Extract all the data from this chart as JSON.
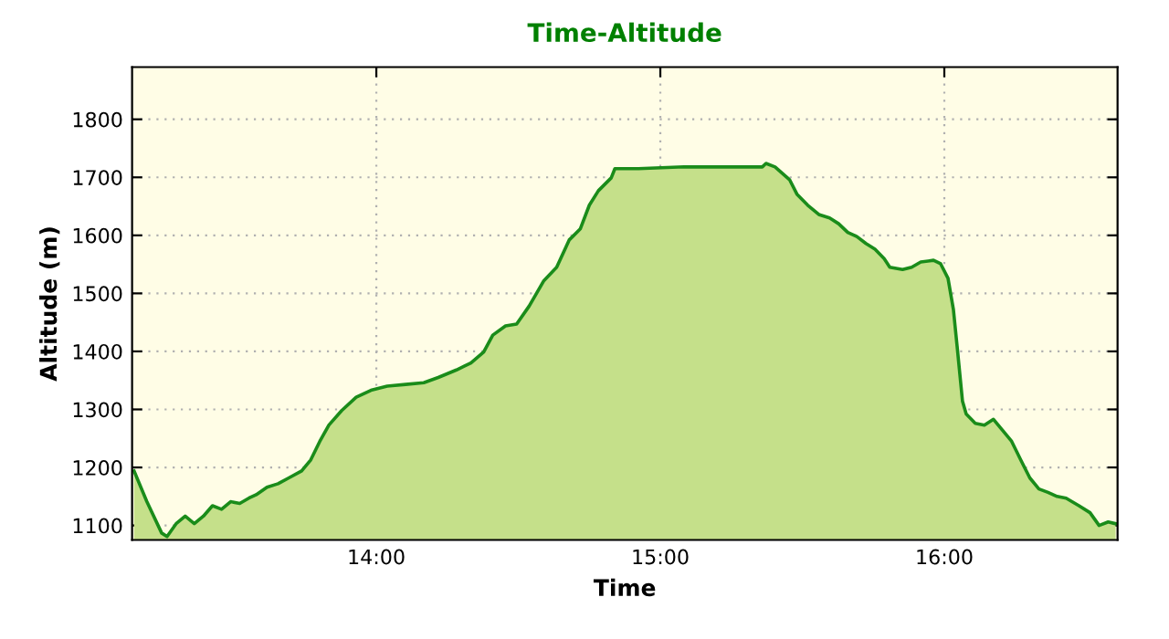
{
  "chart_data": {
    "type": "area",
    "title": "Time-Altitude",
    "xlabel": "Time",
    "ylabel": "Altitude (m)",
    "x": [
      13.147,
      13.192,
      13.244,
      13.263,
      13.295,
      13.327,
      13.359,
      13.391,
      13.423,
      13.455,
      13.487,
      13.519,
      13.551,
      13.577,
      13.615,
      13.654,
      13.692,
      13.737,
      13.769,
      13.801,
      13.833,
      13.878,
      13.929,
      13.981,
      14.038,
      14.103,
      14.167,
      14.218,
      14.282,
      14.333,
      14.378,
      14.41,
      14.455,
      14.494,
      14.538,
      14.59,
      14.635,
      14.679,
      14.718,
      14.75,
      14.782,
      14.827,
      14.84,
      14.923,
      15.083,
      15.244,
      15.359,
      15.372,
      15.404,
      15.455,
      15.481,
      15.519,
      15.558,
      15.596,
      15.628,
      15.66,
      15.692,
      15.724,
      15.756,
      15.788,
      15.808,
      15.853,
      15.885,
      15.917,
      15.962,
      15.987,
      16.013,
      16.032,
      16.045,
      16.064,
      16.077,
      16.109,
      16.141,
      16.173,
      16.205,
      16.237,
      16.269,
      16.301,
      16.333,
      16.365,
      16.397,
      16.429,
      16.474,
      16.513,
      16.545,
      16.577,
      16.603
    ],
    "series": [
      {
        "color": "#1a8c1a",
        "values": [
          1194,
          1141,
          1087,
          1081,
          1103,
          1116,
          1103,
          1116,
          1134,
          1128,
          1141,
          1138,
          1147,
          1153,
          1166,
          1172,
          1182,
          1194,
          1213,
          1245,
          1273,
          1298,
          1321,
          1333,
          1340,
          1343,
          1346,
          1355,
          1368,
          1380,
          1399,
          1428,
          1444,
          1447,
          1478,
          1522,
          1545,
          1592,
          1611,
          1652,
          1677,
          1699,
          1715,
          1715,
          1718,
          1718,
          1718,
          1724,
          1718,
          1696,
          1671,
          1652,
          1636,
          1630,
          1620,
          1605,
          1598,
          1586,
          1576,
          1560,
          1545,
          1541,
          1545,
          1554,
          1557,
          1551,
          1526,
          1472,
          1409,
          1314,
          1292,
          1276,
          1273,
          1283,
          1264,
          1245,
          1213,
          1182,
          1163,
          1157,
          1150,
          1147,
          1134,
          1122,
          1100,
          1106,
          1103
        ]
      }
    ],
    "xlim": [
      13.14,
      16.61
    ],
    "ylim": [
      1075,
      1890
    ],
    "xticks": [
      {
        "value": 14,
        "label": "14:00"
      },
      {
        "value": 15,
        "label": "15:00"
      },
      {
        "value": 16,
        "label": "16:00"
      }
    ],
    "yticks": [
      1100,
      1200,
      1300,
      1400,
      1500,
      1600,
      1700,
      1800
    ],
    "grid": true
  }
}
